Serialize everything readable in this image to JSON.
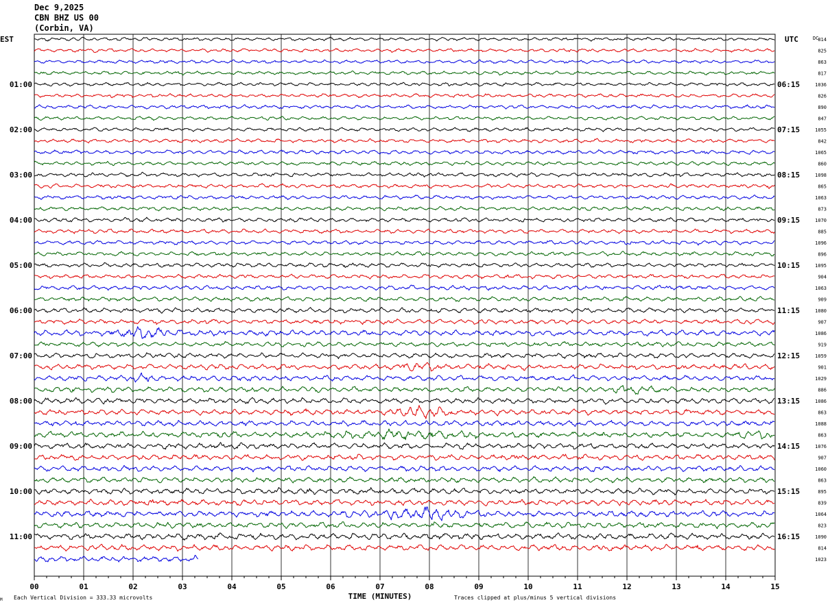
{
  "header": {
    "date": "Dec 9,2025",
    "station": "CBN BHZ US 00",
    "location": "(Corbin, VA)"
  },
  "chart_data": {
    "type": "line",
    "title": "",
    "left_axis_label": "EST",
    "right_axis_label": "UTC",
    "dc_label": "DC",
    "xlabel": "TIME (MINUTES)",
    "xlim": [
      0,
      15
    ],
    "x_ticks": [
      "00",
      "01",
      "02",
      "03",
      "04",
      "05",
      "06",
      "07",
      "08",
      "09",
      "10",
      "11",
      "12",
      "13",
      "14",
      "15"
    ],
    "grid": true,
    "trace_colors": [
      "#000000",
      "#e00000",
      "#0000e0",
      "#006400"
    ],
    "left_hour_labels": [
      {
        "row": 4,
        "label": "01:00"
      },
      {
        "row": 8,
        "label": "02:00"
      },
      {
        "row": 12,
        "label": "03:00"
      },
      {
        "row": 16,
        "label": "04:00"
      },
      {
        "row": 20,
        "label": "05:00"
      },
      {
        "row": 24,
        "label": "06:00"
      },
      {
        "row": 28,
        "label": "07:00"
      },
      {
        "row": 32,
        "label": "08:00"
      },
      {
        "row": 36,
        "label": "09:00"
      },
      {
        "row": 40,
        "label": "10:00"
      },
      {
        "row": 44,
        "label": "11:00"
      }
    ],
    "right_hour_labels": [
      {
        "row": 4,
        "label": "06:15"
      },
      {
        "row": 8,
        "label": "07:15"
      },
      {
        "row": 12,
        "label": "08:15"
      },
      {
        "row": 16,
        "label": "09:15"
      },
      {
        "row": 20,
        "label": "10:15"
      },
      {
        "row": 24,
        "label": "11:15"
      },
      {
        "row": 28,
        "label": "12:15"
      },
      {
        "row": 32,
        "label": "13:15"
      },
      {
        "row": 36,
        "label": "14:15"
      },
      {
        "row": 40,
        "label": "15:15"
      },
      {
        "row": 44,
        "label": "16:15"
      }
    ],
    "dc_offsets": [
      "814",
      "825",
      "863",
      "817",
      "1036",
      "826",
      "890",
      "847",
      "1055",
      "842",
      "1065",
      "860",
      "1098",
      "865",
      "1063",
      "873",
      "1070",
      "885",
      "1096",
      "896",
      "1095",
      "904",
      "1063",
      "909",
      "1080",
      "907",
      "1086",
      "919",
      "1059",
      "901",
      "1029",
      "886",
      "1086",
      "863",
      "1088",
      "863",
      "1076",
      "907",
      "1060",
      "863",
      "895",
      "839",
      "1064",
      "823",
      "1090",
      "814",
      "1023"
    ],
    "amplitudes": [
      2.2,
      2.2,
      2.2,
      2.2,
      2.2,
      2.3,
      2.3,
      2.2,
      2.3,
      2.4,
      2.6,
      2.4,
      2.5,
      2.5,
      2.5,
      2.5,
      2.6,
      2.6,
      2.6,
      2.6,
      2.7,
      2.7,
      2.8,
      2.7,
      3.0,
      3.0,
      3.6,
      3.0,
      3.2,
      3.4,
      3.4,
      3.4,
      3.6,
      3.6,
      3.5,
      3.8,
      3.6,
      3.6,
      3.5,
      3.5,
      3.7,
      3.7,
      3.8,
      3.6,
      3.9,
      3.8,
      3.6
    ],
    "events": [
      {
        "row": 26,
        "start_min": 1.5,
        "end_min": 3.0,
        "gain": 2.4
      },
      {
        "row": 29,
        "start_min": 7.2,
        "end_min": 8.3,
        "gain": 2.0
      },
      {
        "row": 30,
        "start_min": 1.8,
        "end_min": 2.5,
        "gain": 1.8
      },
      {
        "row": 31,
        "start_min": 11.5,
        "end_min": 12.8,
        "gain": 1.9
      },
      {
        "row": 33,
        "start_min": 7.2,
        "end_min": 8.6,
        "gain": 2.6
      },
      {
        "row": 35,
        "start_min": 5.8,
        "end_min": 9.0,
        "gain": 2.0
      },
      {
        "row": 35,
        "start_min": 14.2,
        "end_min": 15.0,
        "gain": 1.7
      },
      {
        "row": 42,
        "start_min": 6.2,
        "end_min": 9.0,
        "gain": 2.2
      },
      {
        "row": 42,
        "start_min": 7.6,
        "end_min": 8.6,
        "gain": 3.2
      }
    ],
    "last_trace_end_min": 3.33,
    "footer_left": "Each Vertical Division =  333.33 microvolts",
    "footer_right": "Traces clipped at plus/minus 5 vertical divisions"
  }
}
